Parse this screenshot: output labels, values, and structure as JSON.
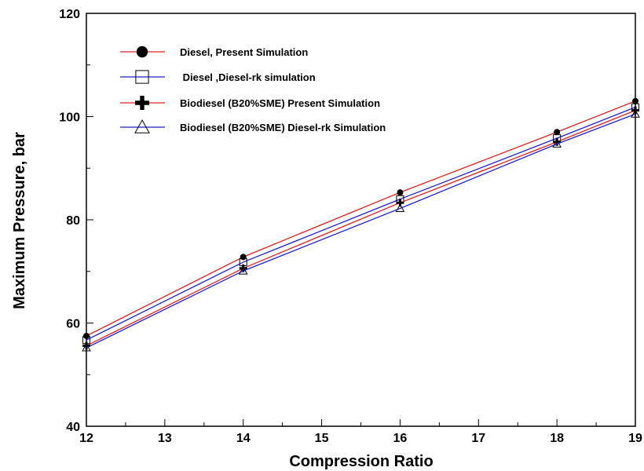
{
  "chart_data": {
    "type": "line",
    "title": "",
    "xlabel": "Compression Ratio",
    "ylabel": "Maximum Pressure, bar",
    "xlim": [
      12,
      19
    ],
    "ylim": [
      40,
      120
    ],
    "x_ticks": [
      12,
      13,
      14,
      15,
      16,
      17,
      18,
      19
    ],
    "y_ticks": [
      40,
      60,
      80,
      100,
      120
    ],
    "grid": false,
    "legend_position": "top-left",
    "series": [
      {
        "name": "Diesel, Present Simulation",
        "color": "#e02020",
        "marker": "filled-circle",
        "x": [
          12,
          14,
          16,
          18,
          19
        ],
        "y": [
          57.5,
          72.8,
          85.3,
          97.0,
          103.0
        ]
      },
      {
        "name": " Diesel ,Diesel-rk simulation",
        "color": "#1f1fd0",
        "marker": "open-square",
        "x": [
          12,
          14,
          16,
          18,
          19
        ],
        "y": [
          56.7,
          71.8,
          84.0,
          95.8,
          101.8
        ]
      },
      {
        "name": "Biodiesel (B20%SME) Present Simulation",
        "color": "#e02020",
        "marker": "plus",
        "x": [
          12,
          14,
          16,
          18,
          19
        ],
        "y": [
          55.6,
          70.6,
          83.3,
          95.1,
          101.2
        ]
      },
      {
        "name": "Biodiesel (B20%SME) Diesel-rk Simulation",
        "color": "#1f1fd0",
        "marker": "open-triangle",
        "x": [
          12,
          14,
          16,
          18,
          19
        ],
        "y": [
          55.2,
          70.1,
          82.2,
          94.7,
          100.5
        ]
      }
    ]
  }
}
